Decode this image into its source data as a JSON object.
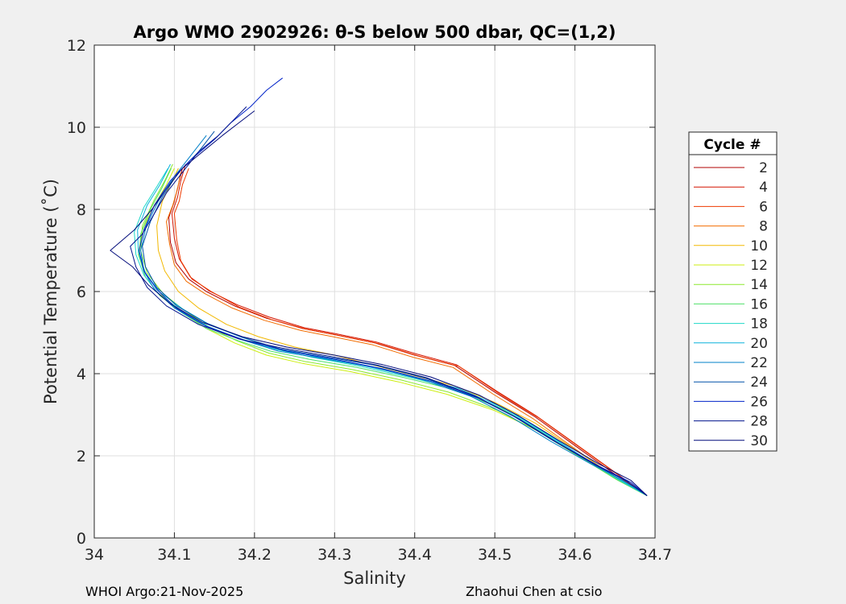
{
  "chart_data": {
    "type": "line",
    "title": "Argo WMO 2902926: θ-S below 500 dbar,  QC=(1,2)",
    "xlabel": "Salinity",
    "ylabel": "Potential Temperature (˚C)",
    "xlim": [
      34.0,
      34.7
    ],
    "ylim": [
      0,
      12
    ],
    "xticks": [
      "34",
      "34.1",
      "34.2",
      "34.3",
      "34.4",
      "34.5",
      "34.6",
      "34.7"
    ],
    "xtick_values": [
      34.0,
      34.1,
      34.2,
      34.3,
      34.4,
      34.5,
      34.6,
      34.7
    ],
    "yticks": [
      "0",
      "2",
      "4",
      "6",
      "8",
      "10",
      "12"
    ],
    "ytick_values": [
      0,
      2,
      4,
      6,
      8,
      10,
      12
    ],
    "grid": true,
    "legend": {
      "title": "Cycle #",
      "placement": "outside-right",
      "entries": [
        {
          "label": "2",
          "color": "#b00000"
        },
        {
          "label": "4",
          "color": "#d31400"
        },
        {
          "label": "6",
          "color": "#ee3a00"
        },
        {
          "label": "8",
          "color": "#f26d00"
        },
        {
          "label": "10",
          "color": "#f2b800"
        },
        {
          "label": "12",
          "color": "#cdee10"
        },
        {
          "label": "14",
          "color": "#8ce82d"
        },
        {
          "label": "16",
          "color": "#4fe06a"
        },
        {
          "label": "18",
          "color": "#1ed8c8"
        },
        {
          "label": "20",
          "color": "#0ab2dc"
        },
        {
          "label": "22",
          "color": "#0080c8"
        },
        {
          "label": "24",
          "color": "#0050a8"
        },
        {
          "label": "26",
          "color": "#0022c8"
        },
        {
          "label": "28",
          "color": "#00128c"
        },
        {
          "label": "30",
          "color": "#000a7a"
        }
      ]
    },
    "series": [
      {
        "name": "2",
        "color": "#b00000",
        "x": [
          34.11,
          34.105,
          34.1,
          34.093,
          34.095,
          34.102,
          34.118,
          34.14,
          34.175,
          34.215,
          34.26,
          34.3,
          34.35,
          34.4,
          34.45,
          34.5,
          34.55,
          34.6,
          34.65,
          34.69
        ],
        "y": [
          9.0,
          8.6,
          8.2,
          7.8,
          7.2,
          6.7,
          6.3,
          6.0,
          5.65,
          5.35,
          5.1,
          4.95,
          4.75,
          4.45,
          4.2,
          3.55,
          2.95,
          2.25,
          1.55,
          1.03
        ]
      },
      {
        "name": "4",
        "color": "#d31400",
        "x": [
          34.114,
          34.108,
          34.104,
          34.097,
          34.1,
          34.106,
          34.12,
          34.143,
          34.178,
          34.218,
          34.262,
          34.302,
          34.352,
          34.402,
          34.452,
          34.502,
          34.552,
          34.602,
          34.652,
          34.69
        ],
        "y": [
          9.1,
          8.7,
          8.3,
          7.9,
          7.3,
          6.8,
          6.35,
          6.02,
          5.68,
          5.38,
          5.12,
          4.97,
          4.77,
          4.48,
          4.22,
          3.58,
          2.97,
          2.27,
          1.57,
          1.03
        ]
      },
      {
        "name": "6",
        "color": "#ee3a00",
        "x": [
          34.118,
          34.11,
          34.106,
          34.1,
          34.103,
          34.108,
          34.122,
          34.146,
          34.181,
          34.221,
          34.265,
          34.305,
          34.355,
          34.405,
          34.455,
          34.505,
          34.555,
          34.605,
          34.655,
          34.69
        ],
        "y": [
          9.0,
          8.6,
          8.2,
          7.9,
          7.25,
          6.75,
          6.3,
          6.0,
          5.62,
          5.32,
          5.08,
          4.93,
          4.73,
          4.43,
          4.18,
          3.52,
          2.92,
          2.22,
          1.52,
          1.03
        ]
      },
      {
        "name": "8",
        "color": "#f26d00",
        "x": [
          34.108,
          34.104,
          34.098,
          34.09,
          34.094,
          34.1,
          34.115,
          34.138,
          34.172,
          34.212,
          34.258,
          34.298,
          34.348,
          34.398,
          34.448,
          34.498,
          34.548,
          34.598,
          34.648,
          34.69
        ],
        "y": [
          8.9,
          8.5,
          8.1,
          7.7,
          7.15,
          6.65,
          6.25,
          5.95,
          5.6,
          5.3,
          5.05,
          4.9,
          4.7,
          4.4,
          4.15,
          3.5,
          2.9,
          2.2,
          1.5,
          1.03
        ]
      },
      {
        "name": "10",
        "color": "#f2b800",
        "x": [
          34.105,
          34.095,
          34.085,
          34.078,
          34.08,
          34.088,
          34.105,
          34.13,
          34.165,
          34.205,
          34.25,
          34.3,
          34.35,
          34.4,
          34.45,
          34.5,
          34.55,
          34.6,
          34.65,
          34.69
        ],
        "y": [
          9.0,
          8.6,
          8.2,
          7.6,
          7.0,
          6.5,
          6.0,
          5.6,
          5.2,
          4.9,
          4.65,
          4.45,
          4.2,
          3.95,
          3.7,
          3.3,
          2.8,
          2.15,
          1.5,
          1.03
        ]
      },
      {
        "name": "12",
        "color": "#cdee10",
        "x": [
          34.1,
          34.09,
          34.075,
          34.06,
          34.055,
          34.065,
          34.085,
          34.11,
          34.14,
          34.175,
          34.215,
          34.26,
          34.32,
          34.38,
          34.44,
          34.5,
          34.55,
          34.6,
          34.65,
          34.69
        ],
        "y": [
          9.0,
          8.6,
          8.1,
          7.5,
          6.9,
          6.4,
          5.9,
          5.5,
          5.1,
          4.75,
          4.45,
          4.25,
          4.05,
          3.8,
          3.5,
          3.1,
          2.65,
          2.05,
          1.45,
          1.03
        ]
      },
      {
        "name": "14",
        "color": "#8ce82d",
        "x": [
          34.098,
          34.088,
          34.074,
          34.06,
          34.058,
          34.066,
          34.086,
          34.112,
          34.142,
          34.178,
          34.218,
          34.262,
          34.322,
          34.382,
          34.442,
          34.502,
          34.552,
          34.602,
          34.652,
          34.69
        ],
        "y": [
          9.1,
          8.7,
          8.2,
          7.6,
          7.0,
          6.45,
          5.95,
          5.55,
          5.15,
          4.8,
          4.5,
          4.3,
          4.1,
          3.85,
          3.55,
          3.12,
          2.62,
          2.02,
          1.42,
          1.03
        ]
      },
      {
        "name": "16",
        "color": "#4fe06a",
        "x": [
          34.096,
          34.084,
          34.07,
          34.058,
          34.056,
          34.064,
          34.082,
          34.108,
          34.14,
          34.18,
          34.22,
          34.268,
          34.328,
          34.388,
          34.448,
          34.508,
          34.556,
          34.604,
          34.654,
          34.69
        ],
        "y": [
          9.0,
          8.5,
          8.0,
          7.4,
          6.85,
          6.35,
          5.9,
          5.5,
          5.1,
          4.8,
          4.55,
          4.35,
          4.15,
          3.9,
          3.62,
          3.15,
          2.6,
          2.0,
          1.4,
          1.03
        ]
      },
      {
        "name": "18",
        "color": "#1ed8c8",
        "x": [
          34.092,
          34.078,
          34.062,
          34.05,
          34.052,
          34.062,
          34.08,
          34.108,
          34.142,
          34.182,
          34.225,
          34.272,
          34.332,
          34.392,
          34.452,
          34.51,
          34.558,
          34.606,
          34.656,
          34.69
        ],
        "y": [
          9.0,
          8.55,
          8.05,
          7.45,
          6.9,
          6.4,
          5.95,
          5.55,
          5.15,
          4.85,
          4.6,
          4.4,
          4.18,
          3.92,
          3.63,
          3.15,
          2.6,
          2.0,
          1.4,
          1.03
        ]
      },
      {
        "name": "20",
        "color": "#0ab2dc",
        "x": [
          34.095,
          34.082,
          34.066,
          34.054,
          34.055,
          34.064,
          34.082,
          34.11,
          34.145,
          34.185,
          34.228,
          34.275,
          34.335,
          34.395,
          34.455,
          34.512,
          34.56,
          34.608,
          34.658,
          34.69
        ],
        "y": [
          9.1,
          8.6,
          8.1,
          7.5,
          6.95,
          6.45,
          5.98,
          5.58,
          5.18,
          4.88,
          4.62,
          4.42,
          4.2,
          3.94,
          3.64,
          3.16,
          2.6,
          2.0,
          1.4,
          1.03
        ]
      },
      {
        "name": "22",
        "color": "#0080c8",
        "x": [
          34.14,
          34.12,
          34.1,
          34.08,
          34.065,
          34.058,
          34.062,
          34.075,
          34.1,
          34.135,
          34.18,
          34.23,
          34.29,
          34.35,
          34.41,
          34.47,
          34.52,
          34.57,
          34.62,
          34.66,
          34.69
        ],
        "y": [
          9.8,
          9.3,
          8.8,
          8.2,
          7.6,
          7.0,
          6.5,
          6.05,
          5.6,
          5.2,
          4.85,
          4.55,
          4.35,
          4.15,
          3.85,
          3.45,
          2.95,
          2.35,
          1.8,
          1.4,
          1.03
        ]
      },
      {
        "name": "24",
        "color": "#0050a8",
        "x": [
          34.15,
          34.13,
          34.105,
          34.085,
          34.07,
          34.06,
          34.064,
          34.078,
          34.103,
          34.138,
          34.183,
          34.232,
          34.292,
          34.352,
          34.412,
          34.472,
          34.522,
          34.572,
          34.622,
          34.662,
          34.69
        ],
        "y": [
          9.9,
          9.4,
          8.9,
          8.3,
          7.7,
          7.1,
          6.6,
          6.1,
          5.65,
          5.25,
          4.9,
          4.6,
          4.4,
          4.2,
          3.9,
          3.48,
          2.98,
          2.38,
          1.82,
          1.42,
          1.03
        ]
      },
      {
        "name": "26",
        "color": "#0022c8",
        "x": [
          34.235,
          34.215,
          34.195,
          34.17,
          34.15,
          34.12,
          34.095,
          34.075,
          34.062,
          34.056,
          34.062,
          34.078,
          34.102,
          34.14,
          34.19,
          34.24,
          34.3,
          34.36,
          34.42,
          34.48,
          34.53,
          34.58,
          34.63,
          34.67,
          34.69
        ],
        "y": [
          11.2,
          10.9,
          10.5,
          10.1,
          9.7,
          9.2,
          8.7,
          8.1,
          7.5,
          7.0,
          6.5,
          6.05,
          5.6,
          5.15,
          4.8,
          4.55,
          4.35,
          4.12,
          3.82,
          3.4,
          2.9,
          2.3,
          1.75,
          1.35,
          1.03
        ]
      },
      {
        "name": "28",
        "color": "#00128c",
        "x": [
          34.19,
          34.175,
          34.155,
          34.13,
          34.11,
          34.09,
          34.075,
          34.06,
          34.045,
          34.052,
          34.066,
          34.09,
          34.13,
          34.18,
          34.235,
          34.295,
          34.355,
          34.415,
          34.475,
          34.525,
          34.575,
          34.625,
          34.665,
          34.69
        ],
        "y": [
          10.5,
          10.2,
          9.8,
          9.4,
          8.9,
          8.4,
          7.9,
          7.4,
          7.1,
          6.6,
          6.1,
          5.65,
          5.2,
          4.85,
          4.62,
          4.42,
          4.2,
          3.9,
          3.46,
          2.95,
          2.35,
          1.78,
          1.38,
          1.03
        ]
      },
      {
        "name": "30",
        "color": "#000a7a",
        "x": [
          34.2,
          34.18,
          34.16,
          34.135,
          34.11,
          34.09,
          34.072,
          34.05,
          34.02,
          34.048,
          34.068,
          34.095,
          34.135,
          34.185,
          34.24,
          34.3,
          34.36,
          34.42,
          34.48,
          34.53,
          34.58,
          34.63,
          34.67,
          34.69
        ],
        "y": [
          10.4,
          10.1,
          9.8,
          9.4,
          9.0,
          8.5,
          8.0,
          7.5,
          7.0,
          6.6,
          6.15,
          5.7,
          5.25,
          4.9,
          4.65,
          4.45,
          4.22,
          3.92,
          3.48,
          2.97,
          2.37,
          1.8,
          1.4,
          1.03
        ]
      }
    ]
  },
  "footer": {
    "left": "WHOI Argo:21-Nov-2025",
    "right": "Zhaohui Chen at csio"
  }
}
